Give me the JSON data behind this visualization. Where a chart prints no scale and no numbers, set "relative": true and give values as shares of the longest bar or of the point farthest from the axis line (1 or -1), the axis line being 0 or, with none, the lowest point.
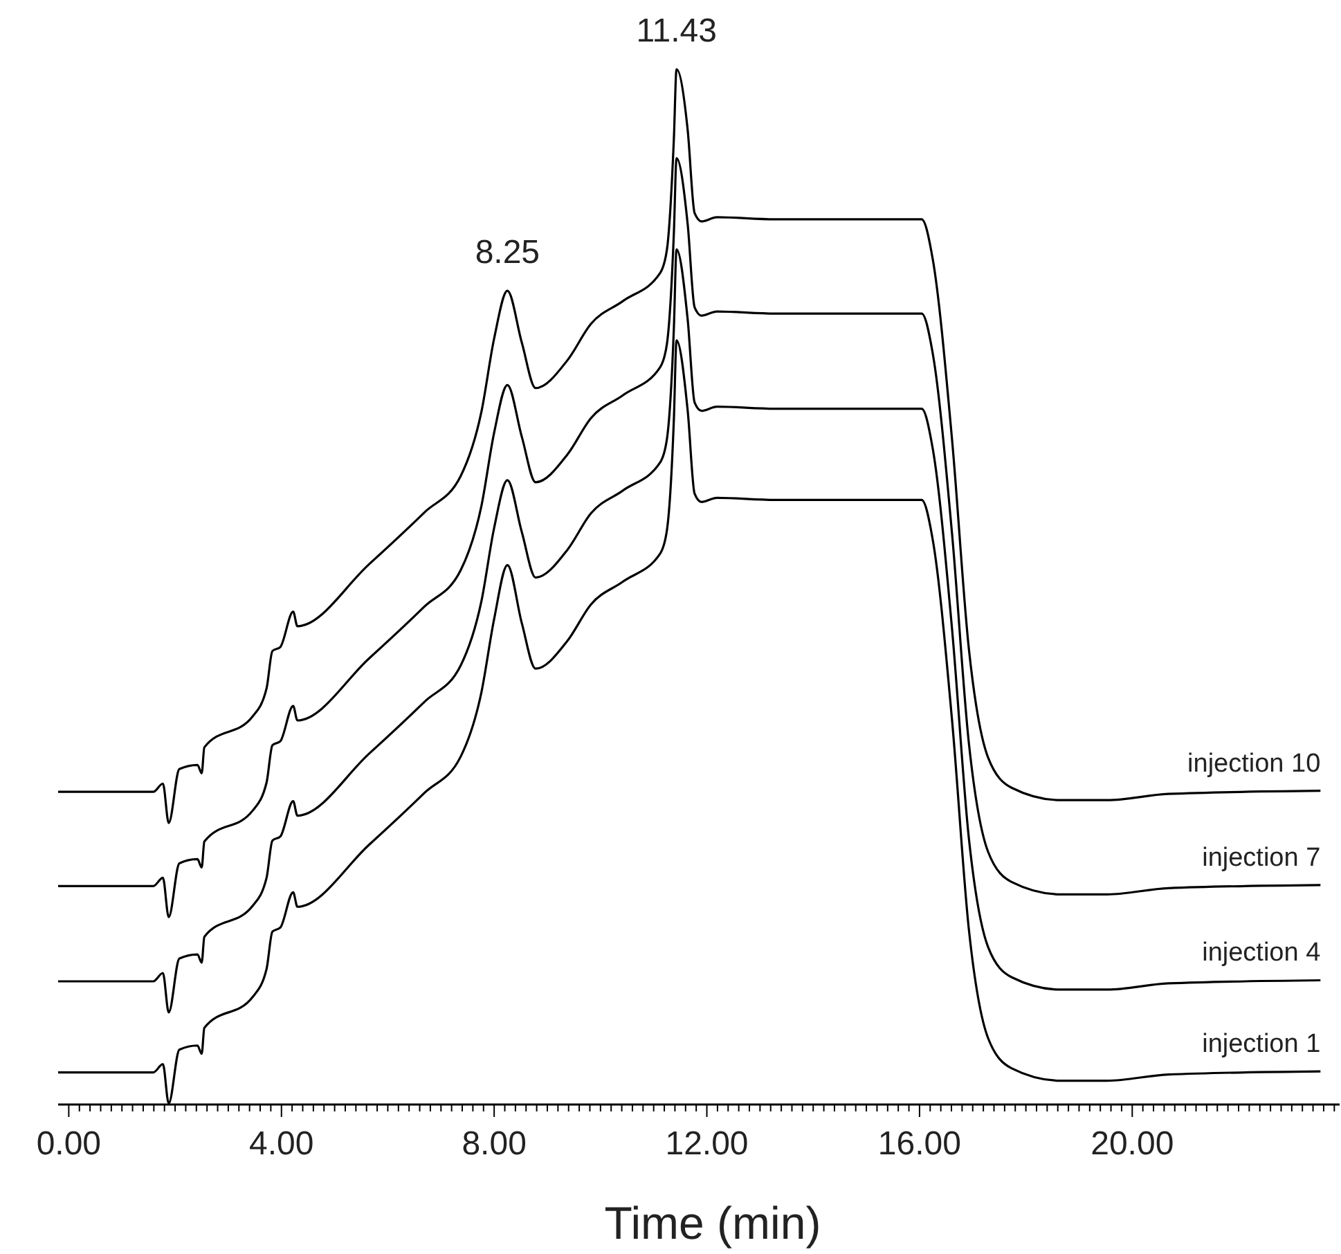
{
  "chart_data": {
    "type": "line",
    "relative": true,
    "xlabel": "Time (min)",
    "xlim": [
      -0.2,
      23.9
    ],
    "xticks": [
      {
        "value": 0,
        "label": "0.00"
      },
      {
        "value": 4,
        "label": "4.00"
      },
      {
        "value": 8,
        "label": "8.00"
      },
      {
        "value": 12,
        "label": "12.00"
      },
      {
        "value": 16,
        "label": "16.00"
      },
      {
        "value": 20,
        "label": "20.00"
      },
      {
        "value": 0.2,
        "label": null
      },
      {
        "value": 0.4,
        "label": null
      },
      {
        "value": 0.6,
        "label": null
      },
      {
        "value": 0.8,
        "label": null
      },
      {
        "value": 1,
        "label": null
      },
      {
        "value": 1.2,
        "label": null
      },
      {
        "value": 1.4,
        "label": null
      },
      {
        "value": 1.6,
        "label": null
      },
      {
        "value": 1.8,
        "label": null
      },
      {
        "value": 2,
        "label": null
      },
      {
        "value": 2.2,
        "label": null
      },
      {
        "value": 2.4,
        "label": null
      },
      {
        "value": 2.6,
        "label": null
      },
      {
        "value": 2.8,
        "label": null
      },
      {
        "value": 3,
        "label": null
      },
      {
        "value": 3.2,
        "label": null
      },
      {
        "value": 3.4,
        "label": null
      },
      {
        "value": 3.6,
        "label": null
      },
      {
        "value": 3.8,
        "label": null
      },
      {
        "value": 4.2,
        "label": null
      },
      {
        "value": 4.4,
        "label": null
      },
      {
        "value": 4.6,
        "label": null
      },
      {
        "value": 4.8,
        "label": null
      },
      {
        "value": 5,
        "label": null
      },
      {
        "value": 5.2,
        "label": null
      },
      {
        "value": 5.4,
        "label": null
      },
      {
        "value": 5.6,
        "label": null
      },
      {
        "value": 5.8,
        "label": null
      },
      {
        "value": 6,
        "label": null
      },
      {
        "value": 6.2,
        "label": null
      },
      {
        "value": 6.4,
        "label": null
      },
      {
        "value": 6.6,
        "label": null
      },
      {
        "value": 6.8,
        "label": null
      },
      {
        "value": 7,
        "label": null
      },
      {
        "value": 7.2,
        "label": null
      },
      {
        "value": 7.4,
        "label": null
      },
      {
        "value": 7.6,
        "label": null
      },
      {
        "value": 7.8,
        "label": null
      },
      {
        "value": 8.2,
        "label": null
      },
      {
        "value": 8.4,
        "label": null
      },
      {
        "value": 8.6,
        "label": null
      },
      {
        "value": 8.8,
        "label": null
      },
      {
        "value": 9,
        "label": null
      },
      {
        "value": 9.2,
        "label": null
      },
      {
        "value": 9.4,
        "label": null
      },
      {
        "value": 9.6,
        "label": null
      },
      {
        "value": 9.8,
        "label": null
      },
      {
        "value": 10,
        "label": null
      },
      {
        "value": 10.2,
        "label": null
      },
      {
        "value": 10.4,
        "label": null
      },
      {
        "value": 10.6,
        "label": null
      },
      {
        "value": 10.8,
        "label": null
      },
      {
        "value": 11,
        "label": null
      },
      {
        "value": 11.2,
        "label": null
      },
      {
        "value": 11.4,
        "label": null
      },
      {
        "value": 11.6,
        "label": null
      },
      {
        "value": 11.8,
        "label": null
      },
      {
        "value": 12.2,
        "label": null
      },
      {
        "value": 12.4,
        "label": null
      },
      {
        "value": 12.6,
        "label": null
      },
      {
        "value": 12.8,
        "label": null
      },
      {
        "value": 13,
        "label": null
      },
      {
        "value": 13.2,
        "label": null
      },
      {
        "value": 13.4,
        "label": null
      },
      {
        "value": 13.6,
        "label": null
      },
      {
        "value": 13.8,
        "label": null
      },
      {
        "value": 14,
        "label": null
      },
      {
        "value": 14.2,
        "label": null
      },
      {
        "value": 14.4,
        "label": null
      },
      {
        "value": 14.6,
        "label": null
      },
      {
        "value": 14.8,
        "label": null
      },
      {
        "value": 15,
        "label": null
      },
      {
        "value": 15.2,
        "label": null
      },
      {
        "value": 15.4,
        "label": null
      },
      {
        "value": 15.6,
        "label": null
      },
      {
        "value": 15.8,
        "label": null
      },
      {
        "value": 16.2,
        "label": null
      },
      {
        "value": 16.4,
        "label": null
      },
      {
        "value": 16.6,
        "label": null
      },
      {
        "value": 16.8,
        "label": null
      },
      {
        "value": 17,
        "label": null
      },
      {
        "value": 17.2,
        "label": null
      },
      {
        "value": 17.4,
        "label": null
      },
      {
        "value": 17.6,
        "label": null
      },
      {
        "value": 17.8,
        "label": null
      },
      {
        "value": 18,
        "label": null
      },
      {
        "value": 18.2,
        "label": null
      },
      {
        "value": 18.4,
        "label": null
      },
      {
        "value": 18.6,
        "label": null
      },
      {
        "value": 18.8,
        "label": null
      },
      {
        "value": 19,
        "label": null
      },
      {
        "value": 19.2,
        "label": null
      },
      {
        "value": 19.4,
        "label": null
      },
      {
        "value": 19.6,
        "label": null
      },
      {
        "value": 19.8,
        "label": null
      },
      {
        "value": 20.2,
        "label": null
      },
      {
        "value": 20.4,
        "label": null
      },
      {
        "value": 20.6,
        "label": null
      },
      {
        "value": 20.8,
        "label": null
      },
      {
        "value": 21,
        "label": null
      },
      {
        "value": 21.2,
        "label": null
      },
      {
        "value": 21.4,
        "label": null
      },
      {
        "value": 21.6,
        "label": null
      },
      {
        "value": 21.8,
        "label": null
      },
      {
        "value": 22,
        "label": null
      },
      {
        "value": 22.2,
        "label": null
      },
      {
        "value": 22.4,
        "label": null
      },
      {
        "value": 22.6,
        "label": null
      },
      {
        "value": 22.8,
        "label": null
      },
      {
        "value": 23,
        "label": null
      },
      {
        "value": 23.2,
        "label": null
      },
      {
        "value": 23.4,
        "label": null
      },
      {
        "value": 23.6,
        "label": null
      },
      {
        "value": 23.8,
        "label": null
      }
    ],
    "x": [
      -0.2,
      1.59,
      1.77,
      1.88,
      2.08,
      2.42,
      2.5,
      2.55,
      3.46,
      3.72,
      3.83,
      3.98,
      4.22,
      4.3,
      5.65,
      6.69,
      7.37,
      7.76,
      8.0,
      8.25,
      8.52,
      8.78,
      9.38,
      9.82,
      10.42,
      11.12,
      11.25,
      11.38,
      11.43,
      11.64,
      11.77,
      11.9,
      12.19,
      13.28,
      16.04,
      16.25,
      16.61,
      16.93,
      17.29,
      17.73,
      18.65,
      19.53,
      20.68,
      23.54
    ],
    "series": [
      {
        "name": "injection 1",
        "color": "#000000",
        "values": [
          0.031,
          0.031,
          0.039,
          0.001,
          0.053,
          0.057,
          0.049,
          0.074,
          0.104,
          0.131,
          0.167,
          0.171,
          0.205,
          0.191,
          0.251,
          0.301,
          0.336,
          0.398,
          0.469,
          0.521,
          0.465,
          0.421,
          0.448,
          0.483,
          0.505,
          0.532,
          0.555,
          0.662,
          0.738,
          0.67,
          0.59,
          0.582,
          0.586,
          0.584,
          0.584,
          0.545,
          0.372,
          0.168,
          0.064,
          0.035,
          0.023,
          0.023,
          0.029,
          0.032
        ]
      },
      {
        "name": "injection 4",
        "color": "#000000",
        "values": [
          0.119,
          0.119,
          0.127,
          0.089,
          0.141,
          0.145,
          0.137,
          0.162,
          0.192,
          0.219,
          0.255,
          0.259,
          0.293,
          0.279,
          0.339,
          0.389,
          0.424,
          0.486,
          0.557,
          0.603,
          0.553,
          0.509,
          0.536,
          0.571,
          0.593,
          0.62,
          0.643,
          0.75,
          0.826,
          0.758,
          0.678,
          0.67,
          0.674,
          0.672,
          0.672,
          0.633,
          0.46,
          0.256,
          0.152,
          0.123,
          0.111,
          0.111,
          0.117,
          0.12
        ]
      },
      {
        "name": "injection 7",
        "color": "#000000",
        "values": [
          0.211,
          0.211,
          0.219,
          0.181,
          0.233,
          0.237,
          0.229,
          0.254,
          0.284,
          0.311,
          0.347,
          0.351,
          0.385,
          0.371,
          0.431,
          0.481,
          0.516,
          0.578,
          0.649,
          0.695,
          0.645,
          0.601,
          0.628,
          0.663,
          0.685,
          0.712,
          0.735,
          0.842,
          0.914,
          0.85,
          0.77,
          0.762,
          0.766,
          0.764,
          0.764,
          0.725,
          0.552,
          0.348,
          0.244,
          0.215,
          0.203,
          0.203,
          0.209,
          0.212
        ]
      },
      {
        "name": "injection 10",
        "color": "#000000",
        "values": [
          0.302,
          0.302,
          0.31,
          0.272,
          0.324,
          0.328,
          0.32,
          0.345,
          0.375,
          0.402,
          0.438,
          0.442,
          0.476,
          0.462,
          0.522,
          0.572,
          0.607,
          0.669,
          0.74,
          0.786,
          0.736,
          0.692,
          0.719,
          0.754,
          0.776,
          0.803,
          0.826,
          0.933,
          1.0,
          0.941,
          0.861,
          0.853,
          0.857,
          0.855,
          0.855,
          0.816,
          0.643,
          0.439,
          0.335,
          0.306,
          0.294,
          0.294,
          0.3,
          0.303
        ]
      }
    ],
    "annotations": [
      {
        "text": "8.25",
        "x": 8.25,
        "y": 0.786
      },
      {
        "text": "11.43",
        "x": 11.43,
        "y": 1.0
      }
    ]
  }
}
